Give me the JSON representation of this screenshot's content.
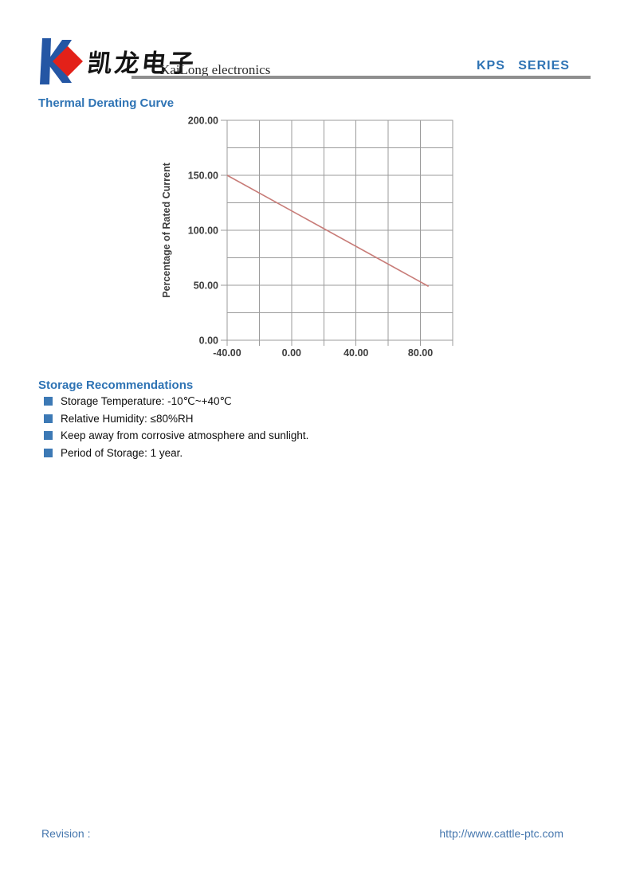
{
  "header": {
    "brand_cn": "凯龙电子",
    "brand_en": "KaiLong electronics",
    "series_label": "KPS   SERIES",
    "colors": {
      "logo_blue": "#2456a4",
      "logo_red": "#e32119",
      "accent_blue": "#2e73b4",
      "rule_gray": "#8f8f8f"
    }
  },
  "sections": {
    "derating": {
      "title": "Thermal Derating Curve"
    },
    "storage": {
      "title": "Storage Recommendations",
      "bullet_color": "#3c79b5",
      "items": [
        "Storage Temperature: -10℃~+40℃",
        "Relative Humidity: ≤80%RH",
        "Keep away from corrosive atmosphere and sunlight.",
        "Period of Storage: 1 year."
      ]
    }
  },
  "footer": {
    "revision_label": "Revision :",
    "website": "http://www.cattle-ptc.com",
    "text_color": "#4677ae"
  },
  "chart_data": {
    "type": "line",
    "title": "",
    "xlabel": "",
    "ylabel": "Percentage of Rated Current",
    "xlim": [
      -40,
      100
    ],
    "ylim": [
      0,
      200
    ],
    "grid": true,
    "x_grid_interval": 20,
    "y_grid_interval": 25,
    "x_ticks": [
      {
        "value": -40,
        "label": "-40.00"
      },
      {
        "value": 0,
        "label": "0.00"
      },
      {
        "value": 40,
        "label": "40.00"
      },
      {
        "value": 80,
        "label": "80.00"
      }
    ],
    "y_ticks": [
      {
        "value": 0,
        "label": "0.00"
      },
      {
        "value": 50,
        "label": "50.00"
      },
      {
        "value": 100,
        "label": "100.00"
      },
      {
        "value": 150,
        "label": "150.00"
      },
      {
        "value": 200,
        "label": "200.00"
      }
    ],
    "grid_color": "#9b9b9b",
    "tick_text_color": "#3d3d3d",
    "line_color": "#c87c78",
    "series": [
      {
        "name": "derating-line",
        "points": [
          [
            -40,
            150
          ],
          [
            85,
            49
          ]
        ]
      }
    ]
  }
}
